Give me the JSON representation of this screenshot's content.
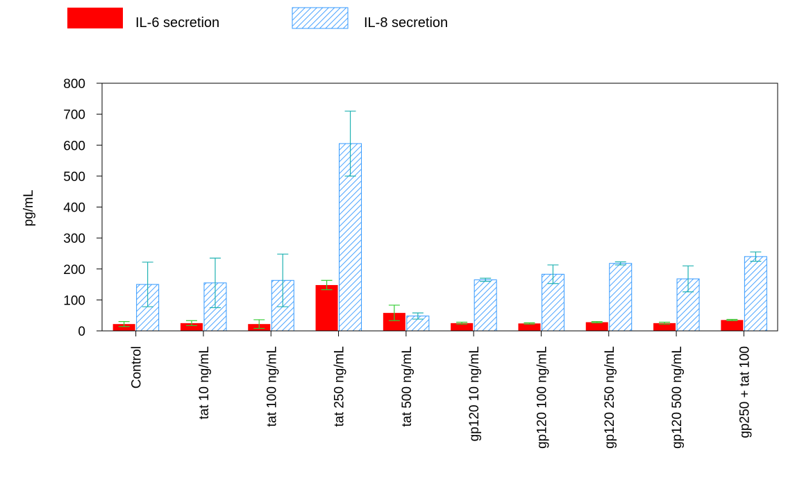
{
  "chart_data": {
    "type": "bar",
    "ylabel": "pg/mL",
    "xlabel": "",
    "ylim": [
      0,
      800
    ],
    "yticks": [
      0,
      100,
      200,
      300,
      400,
      500,
      600,
      700,
      800
    ],
    "legend_position": "top-left",
    "categories": [
      "Control",
      "tat 10 ng/mL",
      "tat 100 ng/mL",
      "tat 250 ng/mL",
      "tat 500 ng/mL",
      "gp120 10 ng/mL",
      "gp120 100 ng/mL",
      "gp120 250 ng/mL",
      "gp120 500 ng/mL",
      "gp250 + tat 100"
    ],
    "series": [
      {
        "name": "IL-6 secretion",
        "color": "#ff0000",
        "fill": "solid",
        "error_color": "#33cc33",
        "values": [
          22,
          25,
          22,
          148,
          58,
          25,
          24,
          28,
          25,
          35
        ],
        "errors": [
          8,
          8,
          14,
          15,
          25,
          3,
          2,
          2,
          3,
          2
        ]
      },
      {
        "name": "IL-8 secretion",
        "color": "#3399ff",
        "fill": "hatched",
        "error_color": "#20b2b2",
        "values": [
          150,
          155,
          163,
          605,
          48,
          165,
          183,
          218,
          168,
          240
        ],
        "errors": [
          72,
          80,
          85,
          105,
          10,
          5,
          30,
          5,
          42,
          15
        ]
      }
    ]
  }
}
